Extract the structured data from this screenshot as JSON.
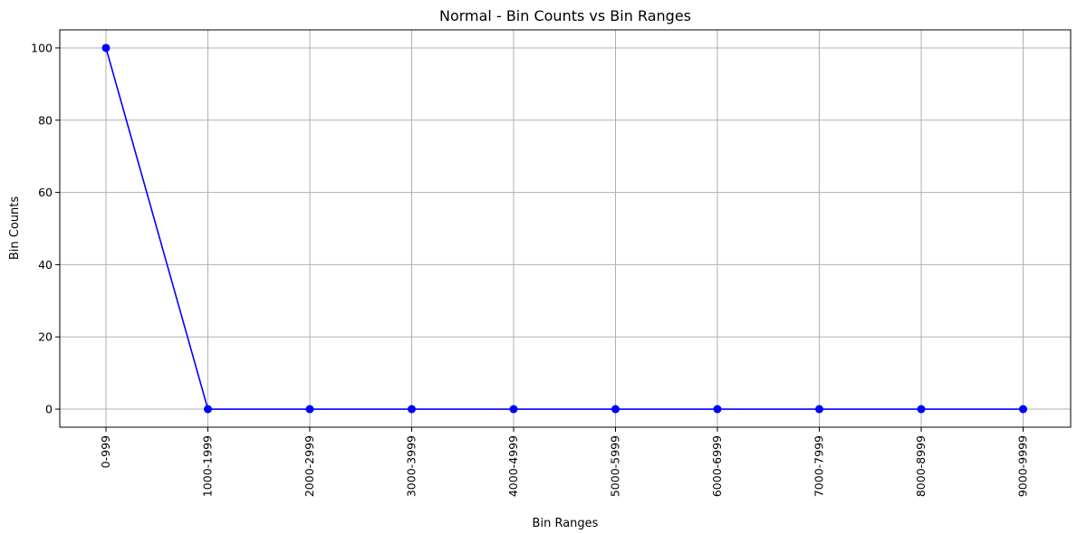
{
  "chart_data": {
    "type": "line",
    "title": "Normal - Bin Counts vs Bin Ranges",
    "xlabel": "Bin Ranges",
    "ylabel": "Bin Counts",
    "categories": [
      "0-999",
      "1000-1999",
      "2000-2999",
      "3000-3999",
      "4000-4999",
      "5000-5999",
      "6000-6999",
      "7000-7999",
      "8000-8999",
      "9000-9999"
    ],
    "series": [
      {
        "values": [
          100,
          0,
          0,
          0,
          0,
          0,
          0,
          0,
          0,
          0
        ],
        "color": "#0000ff",
        "marker": "circle"
      }
    ],
    "ylim": [
      -5,
      105
    ],
    "yticks": [
      0,
      20,
      40,
      60,
      80,
      100
    ],
    "grid": true,
    "legend": "none"
  }
}
